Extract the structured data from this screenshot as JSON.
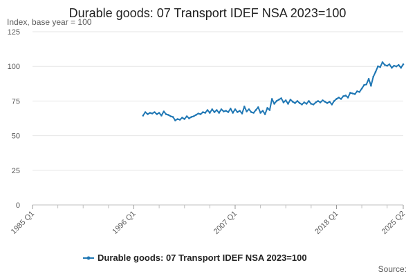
{
  "chart_data": {
    "type": "line",
    "title": "Durable goods: 07 Transport IDEF NSA 2023=100",
    "ylabel": "Index, base year = 100",
    "xlabel": "",
    "ylim": [
      0,
      125
    ],
    "yticks": [
      0,
      25,
      50,
      75,
      100,
      125
    ],
    "xlim": [
      1985,
      2025.25
    ],
    "xticks": [
      {
        "label": "1985 Q1",
        "value": 1985.0
      },
      {
        "label": "1996 Q1",
        "value": 1996.0
      },
      {
        "label": "2007 Q1",
        "value": 2007.0
      },
      {
        "label": "2018 Q1",
        "value": 2018.0
      },
      {
        "label": "2025 Q2",
        "value": 2025.25
      }
    ],
    "grid": true,
    "legend_position": "bottom",
    "series": [
      {
        "name": "Durable goods: 07 Transport IDEF NSA 2023=100",
        "color": "#1f77b4",
        "x": [
          1997.0,
          1997.25,
          1997.5,
          1997.75,
          1998.0,
          1998.25,
          1998.5,
          1998.75,
          1999.0,
          1999.25,
          1999.5,
          1999.75,
          2000.0,
          2000.25,
          2000.5,
          2000.75,
          2001.0,
          2001.25,
          2001.5,
          2001.75,
          2002.0,
          2002.25,
          2002.5,
          2002.75,
          2003.0,
          2003.25,
          2003.5,
          2003.75,
          2004.0,
          2004.25,
          2004.5,
          2004.75,
          2005.0,
          2005.25,
          2005.5,
          2005.75,
          2006.0,
          2006.25,
          2006.5,
          2006.75,
          2007.0,
          2007.25,
          2007.5,
          2007.75,
          2008.0,
          2008.25,
          2008.5,
          2008.75,
          2009.0,
          2009.25,
          2009.5,
          2009.75,
          2010.0,
          2010.25,
          2010.5,
          2010.75,
          2011.0,
          2011.25,
          2011.5,
          2011.75,
          2012.0,
          2012.25,
          2012.5,
          2012.75,
          2013.0,
          2013.25,
          2013.5,
          2013.75,
          2014.0,
          2014.25,
          2014.5,
          2014.75,
          2015.0,
          2015.25,
          2015.5,
          2015.75,
          2016.0,
          2016.25,
          2016.5,
          2016.75,
          2017.0,
          2017.25,
          2017.5,
          2017.75,
          2018.0,
          2018.25,
          2018.5,
          2018.75,
          2019.0,
          2019.25,
          2019.5,
          2019.75,
          2020.0,
          2020.25,
          2020.5,
          2020.75,
          2021.0,
          2021.25,
          2021.5,
          2021.75,
          2022.0,
          2022.25,
          2022.5,
          2022.75,
          2023.0,
          2023.25,
          2023.5,
          2023.75,
          2024.0,
          2024.25,
          2024.5,
          2024.75,
          2025.0,
          2025.25
        ],
        "values": [
          64.5,
          67.0,
          65.5,
          66.5,
          66.0,
          67.0,
          65.5,
          66.5,
          64.5,
          67.5,
          65.5,
          65.0,
          64.0,
          63.5,
          61.0,
          62.0,
          61.5,
          63.0,
          62.0,
          64.0,
          62.5,
          63.5,
          64.0,
          65.0,
          66.0,
          65.5,
          67.0,
          66.5,
          68.5,
          66.5,
          69.0,
          67.0,
          68.5,
          66.5,
          69.0,
          67.5,
          68.0,
          67.0,
          69.5,
          66.5,
          69.0,
          67.0,
          68.0,
          66.0,
          71.0,
          67.5,
          69.0,
          67.0,
          66.5,
          68.5,
          70.5,
          66.5,
          68.0,
          65.5,
          70.0,
          68.5,
          76.5,
          73.0,
          75.0,
          76.0,
          77.0,
          74.0,
          75.5,
          73.0,
          76.0,
          74.5,
          73.5,
          75.0,
          73.5,
          72.5,
          74.0,
          73.0,
          75.0,
          73.0,
          72.5,
          74.0,
          75.0,
          74.0,
          75.5,
          74.5,
          73.5,
          74.5,
          72.5,
          75.0,
          76.5,
          77.5,
          76.5,
          78.5,
          79.0,
          77.5,
          81.0,
          80.5,
          80.0,
          82.0,
          81.5,
          84.0,
          86.5,
          87.0,
          91.0,
          86.0,
          92.5,
          96.0,
          100.0,
          99.5,
          103.0,
          101.0,
          100.5,
          101.5,
          99.0,
          100.5,
          100.0,
          101.0,
          99.0,
          101.5
        ]
      }
    ],
    "source_label": "Source:"
  }
}
